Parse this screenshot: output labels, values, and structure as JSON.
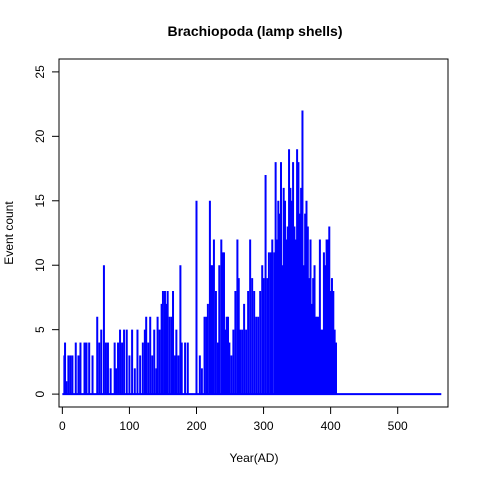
{
  "chart_data": {
    "type": "line",
    "title": "Brachiopoda (lamp shells)",
    "xlabel": "Year(AD)",
    "ylabel": "Event count",
    "xlim": [
      -5,
      575
    ],
    "ylim": [
      -1,
      26
    ],
    "xticks": [
      0,
      100,
      200,
      300,
      400,
      500
    ],
    "yticks": [
      0,
      5,
      10,
      15,
      20,
      25
    ],
    "grid": false,
    "series": [
      {
        "color": "#0000ff",
        "style": "histogram-spikes",
        "points": [
          [
            3,
            3
          ],
          [
            4,
            4
          ],
          [
            6,
            1
          ],
          [
            9,
            3
          ],
          [
            12,
            3
          ],
          [
            15,
            3
          ],
          [
            20,
            4
          ],
          [
            24,
            3
          ],
          [
            27,
            4
          ],
          [
            33,
            4
          ],
          [
            36,
            4
          ],
          [
            40,
            4
          ],
          [
            45,
            3
          ],
          [
            52,
            6
          ],
          [
            55,
            4
          ],
          [
            58,
            5
          ],
          [
            62,
            10
          ],
          [
            65,
            4
          ],
          [
            68,
            4
          ],
          [
            72,
            2
          ],
          [
            78,
            4
          ],
          [
            80,
            2
          ],
          [
            83,
            4
          ],
          [
            86,
            5
          ],
          [
            89,
            4
          ],
          [
            92,
            5
          ],
          [
            96,
            5
          ],
          [
            100,
            3
          ],
          [
            104,
            5
          ],
          [
            108,
            2
          ],
          [
            112,
            5
          ],
          [
            116,
            3
          ],
          [
            120,
            4
          ],
          [
            123,
            5
          ],
          [
            125,
            6
          ],
          [
            128,
            4
          ],
          [
            131,
            6
          ],
          [
            134,
            3
          ],
          [
            137,
            5
          ],
          [
            140,
            2
          ],
          [
            142,
            6
          ],
          [
            145,
            5
          ],
          [
            148,
            7
          ],
          [
            150,
            8
          ],
          [
            153,
            8
          ],
          [
            155,
            7
          ],
          [
            157,
            8
          ],
          [
            160,
            6
          ],
          [
            163,
            6
          ],
          [
            165,
            8
          ],
          [
            168,
            3
          ],
          [
            170,
            5
          ],
          [
            173,
            3
          ],
          [
            176,
            10
          ],
          [
            178,
            4
          ],
          [
            183,
            4
          ],
          [
            187,
            4
          ],
          [
            200,
            15
          ],
          [
            205,
            3
          ],
          [
            208,
            2
          ],
          [
            212,
            6
          ],
          [
            215,
            6
          ],
          [
            217,
            7
          ],
          [
            220,
            15
          ],
          [
            222,
            10
          ],
          [
            224,
            10
          ],
          [
            226,
            12
          ],
          [
            229,
            8
          ],
          [
            232,
            4
          ],
          [
            234,
            10
          ],
          [
            237,
            12
          ],
          [
            239,
            11
          ],
          [
            241,
            11
          ],
          [
            243,
            5
          ],
          [
            245,
            6
          ],
          [
            247,
            6
          ],
          [
            249,
            4
          ],
          [
            252,
            3
          ],
          [
            255,
            5
          ],
          [
            258,
            8
          ],
          [
            261,
            12
          ],
          [
            263,
            9
          ],
          [
            265,
            5
          ],
          [
            268,
            5
          ],
          [
            271,
            7
          ],
          [
            274,
            5
          ],
          [
            277,
            8
          ],
          [
            280,
            12
          ],
          [
            283,
            9
          ],
          [
            286,
            8
          ],
          [
            289,
            6
          ],
          [
            292,
            6
          ],
          [
            295,
            8
          ],
          [
            298,
            10
          ],
          [
            300,
            9
          ],
          [
            303,
            17
          ],
          [
            306,
            9
          ],
          [
            308,
            11
          ],
          [
            311,
            11
          ],
          [
            313,
            12
          ],
          [
            316,
            11
          ],
          [
            318,
            18
          ],
          [
            320,
            12
          ],
          [
            322,
            15
          ],
          [
            324,
            14
          ],
          [
            326,
            18
          ],
          [
            328,
            10
          ],
          [
            330,
            16
          ],
          [
            332,
            15
          ],
          [
            334,
            12
          ],
          [
            336,
            13
          ],
          [
            338,
            19
          ],
          [
            340,
            16
          ],
          [
            342,
            15
          ],
          [
            344,
            18
          ],
          [
            346,
            13
          ],
          [
            348,
            12
          ],
          [
            350,
            19
          ],
          [
            352,
            18
          ],
          [
            354,
            14
          ],
          [
            356,
            16
          ],
          [
            358,
            22
          ],
          [
            360,
            10
          ],
          [
            362,
            14
          ],
          [
            364,
            15
          ],
          [
            366,
            13
          ],
          [
            368,
            9
          ],
          [
            370,
            12
          ],
          [
            372,
            7
          ],
          [
            374,
            9
          ],
          [
            376,
            10
          ],
          [
            378,
            6
          ],
          [
            380,
            6
          ],
          [
            382,
            6
          ],
          [
            384,
            12
          ],
          [
            386,
            5
          ],
          [
            388,
            5
          ],
          [
            390,
            11
          ],
          [
            392,
            10
          ],
          [
            394,
            12
          ],
          [
            396,
            12
          ],
          [
            398,
            13
          ],
          [
            400,
            8
          ],
          [
            402,
            9
          ],
          [
            404,
            8
          ],
          [
            406,
            5
          ],
          [
            408,
            4
          ]
        ]
      }
    ]
  }
}
